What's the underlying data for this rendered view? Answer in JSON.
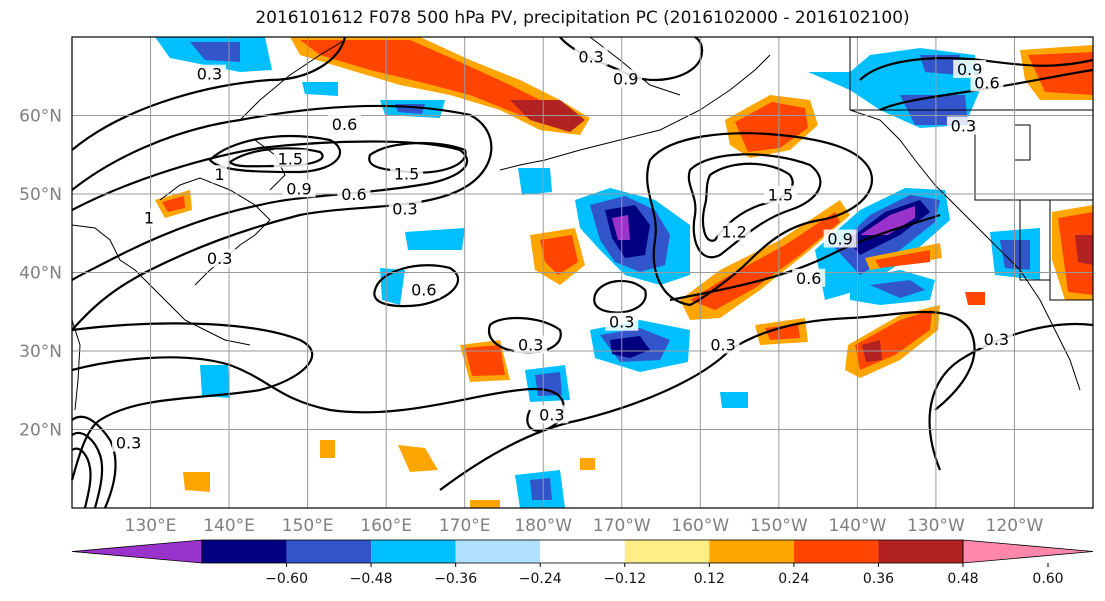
{
  "title": "2016101612 F078 500 hPa PV, precipitation PC (2016102000 - 2016102100)",
  "map": {
    "lon_range": [
      120,
      250
    ],
    "lat_range": [
      10,
      70
    ],
    "lat_ticks": [
      {
        "lat": 60,
        "label": "60°N"
      },
      {
        "lat": 50,
        "label": "50°N"
      },
      {
        "lat": 40,
        "label": "40°N"
      },
      {
        "lat": 30,
        "label": "30°N"
      },
      {
        "lat": 20,
        "label": "20°N"
      }
    ],
    "lon_ticks": [
      {
        "lon": 130,
        "label": "130°E"
      },
      {
        "lon": 140,
        "label": "140°E"
      },
      {
        "lon": 150,
        "label": "150°E"
      },
      {
        "lon": 160,
        "label": "160°E"
      },
      {
        "lon": 170,
        "label": "170°E"
      },
      {
        "lon": 180,
        "label": "180°W"
      },
      {
        "lon": 190,
        "label": "170°W"
      },
      {
        "lon": 200,
        "label": "160°W"
      },
      {
        "lon": 210,
        "label": "150°W"
      },
      {
        "lon": 220,
        "label": "140°W"
      },
      {
        "lon": 230,
        "label": "130°W"
      },
      {
        "lon": 240,
        "label": "120°W"
      }
    ],
    "contour_labels": [
      {
        "text": "0.3",
        "lon": 137.5,
        "lat": 65.2
      },
      {
        "text": "0.6",
        "lon": 154.7,
        "lat": 58.8
      },
      {
        "text": "1.5",
        "lon": 147.8,
        "lat": 54.4
      },
      {
        "text": "1.5",
        "lon": 162.6,
        "lat": 52.5
      },
      {
        "text": "1",
        "lon": 138.8,
        "lat": 52.4
      },
      {
        "text": "0.9",
        "lon": 148.9,
        "lat": 50.6
      },
      {
        "text": "0.6",
        "lon": 155.9,
        "lat": 49.9
      },
      {
        "text": "0.3",
        "lon": 162.4,
        "lat": 48.0
      },
      {
        "text": "1",
        "lon": 129.8,
        "lat": 46.9
      },
      {
        "text": "0.3",
        "lon": 138.8,
        "lat": 41.7
      },
      {
        "text": "0.6",
        "lon": 164.8,
        "lat": 37.7
      },
      {
        "text": "0.3",
        "lon": 190.0,
        "lat": 33.6
      },
      {
        "text": "0.3",
        "lon": 178.4,
        "lat": 30.7
      },
      {
        "text": "0.3",
        "lon": 181.1,
        "lat": 21.8
      },
      {
        "text": "0.3",
        "lon": 186.1,
        "lat": 67.4
      },
      {
        "text": "0.9",
        "lon": 190.5,
        "lat": 64.6
      },
      {
        "text": "1.5",
        "lon": 210.2,
        "lat": 49.8
      },
      {
        "text": "1.2",
        "lon": 204.3,
        "lat": 45.1
      },
      {
        "text": "0.9",
        "lon": 217.8,
        "lat": 44.2
      },
      {
        "text": "0.6",
        "lon": 213.8,
        "lat": 39.2
      },
      {
        "text": "0.3",
        "lon": 202.9,
        "lat": 30.7
      },
      {
        "text": "0.3",
        "lon": 233.5,
        "lat": 58.6
      },
      {
        "text": "0.9",
        "lon": 234.3,
        "lat": 65.8
      },
      {
        "text": "0.6",
        "lon": 236.5,
        "lat": 64.1
      },
      {
        "text": "0.3",
        "lon": 237.7,
        "lat": 31.4
      },
      {
        "text": "0.3",
        "lon": 127.2,
        "lat": 18.2
      }
    ]
  },
  "colorbar": {
    "colors": [
      "#9933cc",
      "#000080",
      "#3355cc",
      "#00bfff",
      "#b0e0ff",
      "#ffffff",
      "#ffee88",
      "#ffa500",
      "#ff4500",
      "#b22222",
      "#ff88aa"
    ],
    "tick_labels": [
      "−0.60",
      "−0.48",
      "−0.36",
      "−0.24",
      "−0.12",
      "0.12",
      "0.24",
      "0.36",
      "0.48",
      "0.60"
    ]
  }
}
